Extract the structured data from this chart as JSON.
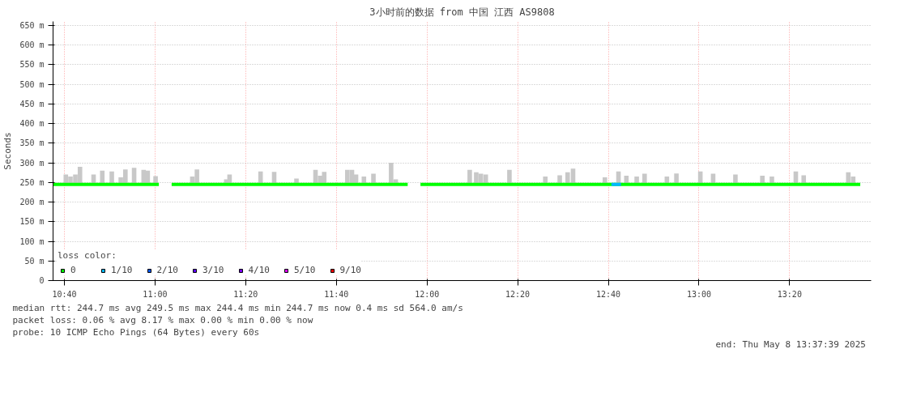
{
  "chart_data": {
    "type": "line",
    "title": "3小时前的数据 from 中国 江西 AS9808",
    "ylabel": "Seconds",
    "xlim": [
      10.625,
      13.633
    ],
    "ylim": [
      0,
      660
    ],
    "xticks": [
      {
        "value": 10.6667,
        "label": "10:40"
      },
      {
        "value": 11,
        "label": "11:00"
      },
      {
        "value": 11.3333,
        "label": "11:20"
      },
      {
        "value": 11.6667,
        "label": "11:40"
      },
      {
        "value": 12,
        "label": "12:00"
      },
      {
        "value": 12.3333,
        "label": "12:20"
      },
      {
        "value": 12.6667,
        "label": "12:40"
      },
      {
        "value": 13,
        "label": "13:00"
      },
      {
        "value": 13.3333,
        "label": "13:20"
      }
    ],
    "yticks": [
      0,
      {
        "value": 50,
        "label": "50 m"
      },
      {
        "value": 100,
        "label": "100 m"
      },
      {
        "value": 150,
        "label": "150 m"
      },
      {
        "value": 200,
        "label": "200 m"
      },
      {
        "value": 250,
        "label": "250 m"
      },
      {
        "value": 300,
        "label": "300 m"
      },
      {
        "value": 350,
        "label": "350 m"
      },
      {
        "value": 400,
        "label": "400 m"
      },
      {
        "value": 450,
        "label": "450 m"
      },
      {
        "value": 500,
        "label": "500 m"
      },
      {
        "value": 550,
        "label": "550 m"
      },
      {
        "value": 600,
        "label": "600 m"
      },
      {
        "value": 650,
        "label": "650 m"
      }
    ],
    "grid": true,
    "legend": "bottom",
    "legend_title": "loss color:",
    "series": [
      {
        "type": "bar",
        "color": "#c8c8c8",
        "x": [
          10.672,
          10.689,
          10.707,
          10.724,
          10.774,
          10.806,
          10.841,
          10.874,
          10.891,
          10.923,
          10.958,
          10.973,
          11.002,
          11.137,
          11.154,
          11.262,
          11.274,
          11.388,
          11.438,
          11.52,
          11.59,
          11.607,
          11.622,
          11.707,
          11.724,
          11.739,
          11.768,
          11.803,
          11.868,
          11.885,
          12.157,
          12.181,
          12.198,
          12.216,
          12.303,
          12.435,
          12.488,
          12.517,
          12.537,
          12.654,
          12.704,
          12.733,
          12.771,
          12.8,
          12.882,
          12.917,
          13.005,
          13.052,
          13.134,
          13.233,
          13.268,
          13.356,
          13.385,
          13.549,
          13.567
        ],
        "base": [
          245,
          245,
          245,
          245,
          245,
          245,
          245,
          245,
          245,
          245,
          245,
          245,
          245,
          245,
          245,
          245,
          245,
          245,
          245,
          245,
          245,
          245,
          245,
          245,
          245,
          245,
          245,
          245,
          245,
          245,
          245,
          245,
          245,
          245,
          245,
          245,
          245,
          245,
          245,
          245,
          245,
          245,
          245,
          245,
          245,
          245,
          245,
          245,
          245,
          245,
          245,
          245,
          245,
          245,
          245
        ],
        "values": [
          25,
          20,
          25,
          45,
          25,
          35,
          33,
          18,
          38,
          42,
          37,
          35,
          21,
          20,
          38,
          13,
          25,
          33,
          32,
          15,
          37,
          22,
          32,
          37,
          37,
          25,
          20,
          27,
          55,
          13,
          37,
          31,
          27,
          25,
          37,
          20,
          23,
          31,
          40,
          18,
          33,
          22,
          20,
          27,
          20,
          28,
          33,
          27,
          25,
          22,
          20,
          33,
          23,
          31,
          20
        ]
      },
      {
        "name": "0",
        "color": "#00ff00",
        "x": [
          10.625,
          11.014,
          11.03,
          11.061,
          11.929,
          11.95,
          11.976,
          13.593
        ],
        "values": [
          245,
          245,
          null,
          245,
          245,
          null,
          245,
          245
        ]
      },
      {
        "name": "1/10",
        "color": "#00b8ff",
        "x": [
          12.678,
          12.713
        ],
        "values": [
          245,
          245
        ]
      },
      {
        "name": "2/10",
        "color": "#0059ff"
      },
      {
        "name": "3/10",
        "color": "#5e00ff"
      },
      {
        "name": "4/10",
        "color": "#7e00ff"
      },
      {
        "name": "5/10",
        "color": "#dd00ff"
      },
      {
        "name": "9/10",
        "color": "#ff0000"
      }
    ],
    "annotations": [
      "median rtt:  244.7 ms avg  249.5 ms max  244.4 ms min  244.7 ms now  0.4 ms sd  564.0   am/s",
      "packet loss: 0.06 % avg  8.17 % max  0.00 % min  0.00 % now",
      "probe:       10 ICMP Echo Pings (64 Bytes) every 60s",
      "end: Thu May  8 13:37:39 2025"
    ]
  }
}
